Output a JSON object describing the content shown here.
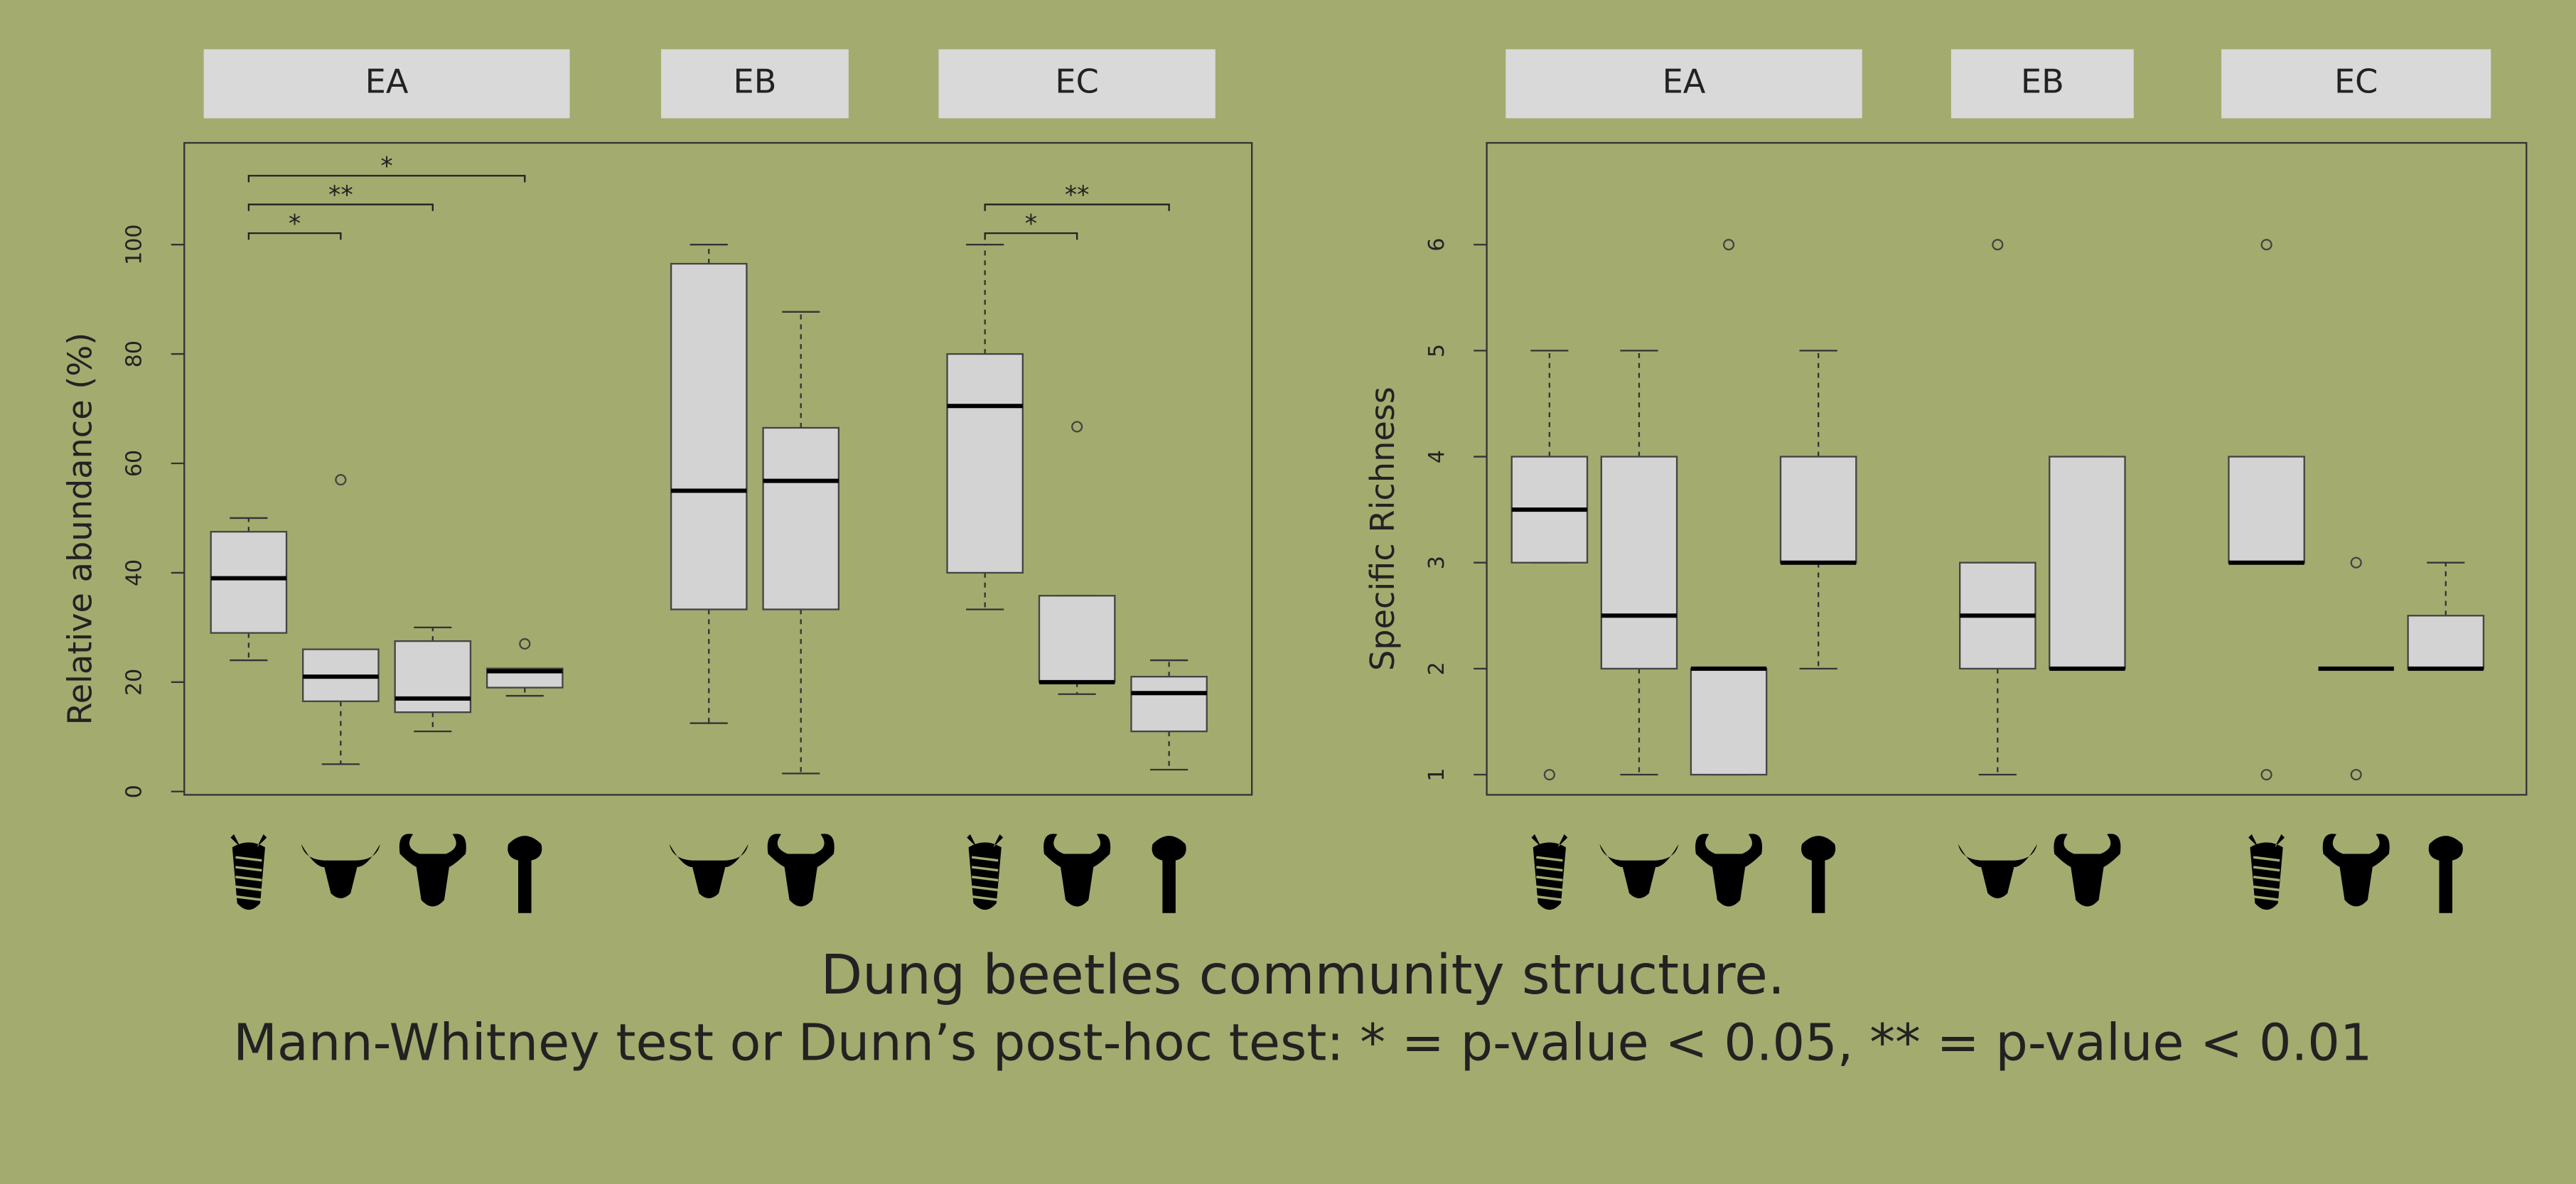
{
  "chart_data": [
    {
      "type": "box",
      "ylabel": "Relative abundance (%)",
      "ylim": [
        -0.6,
        118.6
      ],
      "yticks": [
        0,
        20,
        40,
        60,
        80,
        100
      ],
      "box_color": "#d3d3d3",
      "panels": [
        {
          "label": "EA",
          "boxes": [
            {
              "low": 24,
              "q1": 29,
              "median": 39,
              "q3": 47.5,
              "high": 50
            },
            {
              "low": 5,
              "q1": 16.5,
              "median": 21,
              "q3": 26,
              "high": 26,
              "outliers": [
                57
              ]
            },
            {
              "low": 11,
              "q1": 14.5,
              "median": 17,
              "q3": 27.5,
              "high": 30
            },
            {
              "low": 17.5,
              "q1": 19,
              "median": 22,
              "q3": 22.5,
              "high": 22.5,
              "outliers": [
                27
              ]
            }
          ],
          "brackets": [
            {
              "boxes": [
                0,
                1
              ],
              "label": "*"
            },
            {
              "boxes": [
                0,
                2
              ],
              "label": "**"
            },
            {
              "boxes": [
                0,
                3
              ],
              "label": "*"
            }
          ]
        },
        {
          "label": "EB",
          "boxes": [
            {
              "low": 12.5,
              "q1": 33.3,
              "median": 55,
              "q3": 96.5,
              "high": 100
            },
            {
              "low": 3.3,
              "q1": 33.3,
              "median": 56.8,
              "q3": 66.5,
              "high": 87.7
            }
          ]
        },
        {
          "label": "EC",
          "boxes": [
            {
              "low": 33.3,
              "q1": 40,
              "median": 70.5,
              "q3": 80,
              "high": 100
            },
            {
              "low": 17.8,
              "q1": 20,
              "median": 20,
              "q3": 35.8,
              "high": 35.8,
              "outliers": [
                66.7
              ]
            },
            {
              "low": 4,
              "q1": 11,
              "median": 18,
              "q3": 21,
              "high": 24
            }
          ],
          "brackets": [
            {
              "boxes": [
                0,
                1
              ],
              "label": "*"
            },
            {
              "boxes": [
                0,
                2
              ],
              "label": "**"
            }
          ]
        }
      ]
    },
    {
      "type": "box",
      "ylabel": "Specific Richness",
      "ylim": [
        0.81,
        6.96
      ],
      "yticks": [
        1,
        2,
        3,
        4,
        5,
        6
      ],
      "box_color": "#d3d3d3",
      "panels": [
        {
          "label": "EA",
          "boxes": [
            {
              "low": 3,
              "q1": 3,
              "median": 3.5,
              "q3": 4,
              "high": 5,
              "outliers": [
                1
              ]
            },
            {
              "low": 1,
              "q1": 2,
              "median": 2.5,
              "q3": 4,
              "high": 5
            },
            {
              "low": 1,
              "q1": 1,
              "median": 2,
              "q3": 2,
              "high": 2,
              "outliers": [
                6
              ]
            },
            {
              "low": 2,
              "q1": 3,
              "median": 3,
              "q3": 4,
              "high": 5
            }
          ]
        },
        {
          "label": "EB",
          "boxes": [
            {
              "low": 1,
              "q1": 2,
              "median": 2.5,
              "q3": 3,
              "high": 3,
              "outliers": [
                6
              ]
            },
            {
              "low": 2,
              "q1": 2,
              "median": 2,
              "q3": 4,
              "high": 4
            }
          ]
        },
        {
          "label": "EC",
          "boxes": [
            {
              "low": 3,
              "q1": 3,
              "median": 3,
              "q3": 4,
              "high": 4,
              "outliers": [
                6,
                1
              ]
            },
            {
              "low": 2,
              "q1": 2,
              "median": 2,
              "q3": 2,
              "high": 2,
              "outliers": [
                3,
                1
              ]
            },
            {
              "low": 2,
              "q1": 2,
              "median": 2,
              "q3": 2.5,
              "high": 3
            }
          ]
        }
      ]
    }
  ],
  "caption": [
    "Dung beetles community structure.",
    "Mann-Whitney test or Dunn’s post-hoc test: * = p-value < 0.05, ** = p-value < 0.01"
  ]
}
